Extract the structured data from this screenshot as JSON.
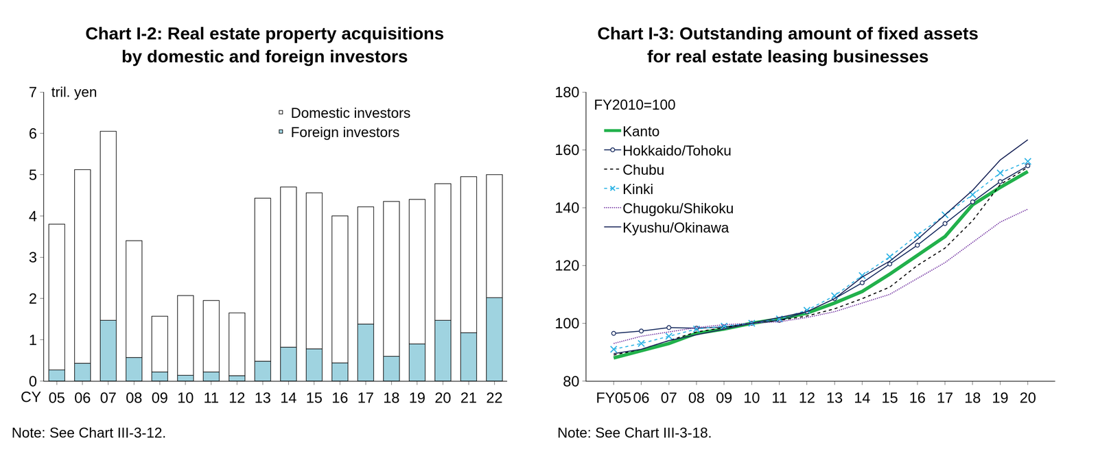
{
  "chart_data": [
    {
      "type": "bar",
      "title": "Chart I-2: Real estate property acquisitions\nby domestic and foreign investors",
      "ylabel": "tril. yen",
      "xlabel": "CY",
      "note": "Note: See Chart III-3-12.",
      "categories": [
        "05",
        "06",
        "07",
        "08",
        "09",
        "10",
        "11",
        "12",
        "13",
        "14",
        "15",
        "16",
        "17",
        "18",
        "19",
        "20",
        "21",
        "22"
      ],
      "stacked": true,
      "legend": "upper right",
      "grid": false,
      "ylim": [
        0,
        7
      ],
      "yticks": [
        0,
        1,
        2,
        3,
        4,
        5,
        6,
        7
      ],
      "series": [
        {
          "name": "Domestic investors",
          "color": "#ffffff",
          "values": [
            3.53,
            4.69,
            4.58,
            2.83,
            1.35,
            1.93,
            1.73,
            1.52,
            3.95,
            3.88,
            3.78,
            3.56,
            2.84,
            3.75,
            3.5,
            3.31,
            3.78,
            2.98
          ]
        },
        {
          "name": "Foreign investors",
          "color": "#9fd3e0",
          "values": [
            0.27,
            0.43,
            1.47,
            0.57,
            0.22,
            0.14,
            0.22,
            0.13,
            0.48,
            0.82,
            0.78,
            0.44,
            1.38,
            0.6,
            0.9,
            1.47,
            1.17,
            2.02
          ]
        }
      ]
    },
    {
      "type": "line",
      "title": "Chart I-3: Outstanding amount of fixed assets\nfor real estate leasing businesses",
      "ylabel": "FY2010=100",
      "note": "Note: See Chart III-3-18.",
      "categories": [
        "FY05",
        "06",
        "07",
        "08",
        "09",
        "10",
        "11",
        "12",
        "13",
        "14",
        "15",
        "16",
        "17",
        "18",
        "19",
        "20"
      ],
      "legend": "upper left",
      "grid": false,
      "ylim": [
        80,
        180
      ],
      "yticks": [
        80,
        100,
        120,
        140,
        160,
        180
      ],
      "series": [
        {
          "name": "Kanto",
          "color": "#22b14c",
          "line_style": "solid",
          "marker": "none",
          "values": [
            88,
            90.5,
            93,
            96.5,
            98,
            100,
            101.5,
            103.5,
            107,
            111,
            117,
            123.5,
            130,
            141,
            147,
            152.5
          ]
        },
        {
          "name": "Hokkaido/Tohoku",
          "color": "#1f3264",
          "line_style": "solid",
          "marker": "circle",
          "values": [
            96.5,
            97.3,
            98.5,
            98.3,
            98.7,
            100,
            101,
            104,
            108.5,
            114,
            120.5,
            127,
            134.5,
            142,
            149,
            154.5
          ]
        },
        {
          "name": "Chubu",
          "color": "#000000",
          "line_style": "dashed",
          "marker": "none",
          "values": [
            89,
            91,
            94,
            97,
            98.5,
            100,
            101,
            102.5,
            105,
            108.5,
            112.5,
            120,
            126,
            135.5,
            148,
            154
          ]
        },
        {
          "name": "Kinki",
          "color": "#33b5e5",
          "line_style": "dashed",
          "marker": "x",
          "values": [
            91,
            93,
            95.5,
            98,
            99,
            100,
            101.5,
            104.5,
            109.5,
            116.5,
            123,
            130.5,
            137.5,
            144.5,
            152,
            156
          ]
        },
        {
          "name": "Chugoku/Shikoku",
          "color": "#7030a0",
          "line_style": "dotted",
          "marker": "none",
          "values": [
            93,
            95.5,
            97,
            98.5,
            99.5,
            100,
            100.5,
            102,
            104,
            107,
            110,
            115.5,
            121,
            128,
            135,
            139.5
          ]
        },
        {
          "name": "Kyushu/Okinawa",
          "color": "#1f2a5c",
          "line_style": "solid",
          "marker": "none",
          "values": [
            89.5,
            91,
            94,
            96,
            98,
            100,
            102,
            104,
            108.5,
            116,
            121.5,
            129,
            137.5,
            146,
            156.5,
            163.5
          ]
        }
      ]
    }
  ]
}
